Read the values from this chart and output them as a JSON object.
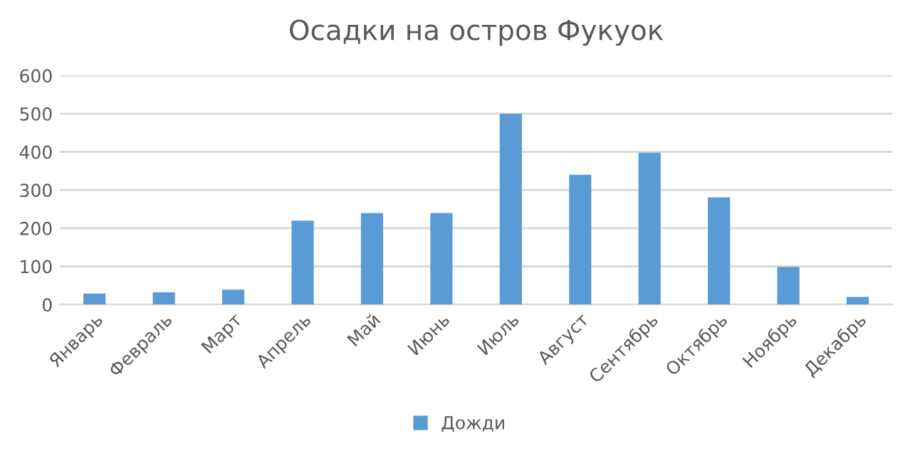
{
  "chart_data": {
    "type": "bar",
    "title": "Осадки на остров Фукуок",
    "categories": [
      "Январь",
      "Февраль",
      "Март",
      "Апрель",
      "Май",
      "Июнь",
      "Июль",
      "Август",
      "Сентябрь",
      "Октябрь",
      "Ноябрь",
      "Декабрь"
    ],
    "series": [
      {
        "name": "Дожди",
        "color": "#5b9bd5",
        "values": [
          29,
          32,
          39,
          220,
          240,
          240,
          500,
          340,
          398,
          281,
          99,
          20
        ]
      }
    ],
    "ylim": [
      0,
      600
    ],
    "yticks": [
      0,
      100,
      200,
      300,
      400,
      500,
      600
    ],
    "grid": "y",
    "legend": "bottom"
  }
}
